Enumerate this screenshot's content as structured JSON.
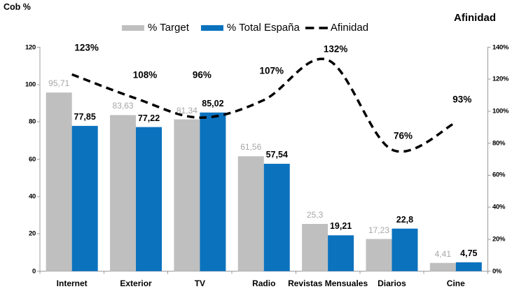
{
  "titles": {
    "left_axis_title": "Cob %",
    "right_axis_title": "Afinidad"
  },
  "legend": [
    {
      "label": "% Target",
      "marker": "gray-bar-swatch"
    },
    {
      "label": "% Total España",
      "marker": "blue-bar-swatch"
    },
    {
      "label": "Afinidad",
      "marker": "black-dashed-line-swatch"
    }
  ],
  "colors": {
    "target_bar": "#BFBFBF",
    "espana_bar": "#0B72BE",
    "line": "#000000",
    "target_label": "#A6A6A6",
    "espana_label": "#000000",
    "axis": "#9C9C9C"
  },
  "chart_data": {
    "type": "combo-bar-line",
    "title": "",
    "categories": [
      "Internet",
      "Exterior",
      "TV",
      "Radio",
      "Revistas Mensuales",
      "Diarios",
      "Cine"
    ],
    "series": [
      {
        "name": "% Target",
        "type": "bar",
        "axis": "left",
        "values": [
          95.71,
          83.63,
          81.34,
          61.56,
          25.3,
          17.23,
          4.41
        ],
        "labels": [
          "95,71",
          "83,63",
          "81,34",
          "61,56",
          "25,3",
          "17,23",
          "4,41"
        ]
      },
      {
        "name": "% Total España",
        "type": "bar",
        "axis": "left",
        "values": [
          77.85,
          77.22,
          85.02,
          57.54,
          19.21,
          22.8,
          4.75
        ],
        "labels": [
          "77,85",
          "77,22",
          "85,02",
          "57,54",
          "19,21",
          "22,8",
          "4,75"
        ]
      },
      {
        "name": "Afinidad",
        "type": "line",
        "axis": "right",
        "style": "smooth-dashed",
        "values": [
          123,
          108,
          96,
          107,
          132,
          76,
          93
        ],
        "labels": [
          "123%",
          "108%",
          "96%",
          "107%",
          "132%",
          "76%",
          "93%"
        ]
      }
    ],
    "left_axis": {
      "title": "Cob %",
      "min": 0,
      "max": 120,
      "step": 20,
      "tick_labels": [
        "0",
        "20",
        "40",
        "60",
        "80",
        "100",
        "120"
      ]
    },
    "right_axis": {
      "title": "Afinidad",
      "min": 0,
      "max": 140,
      "step": 20,
      "tick_labels": [
        "0%",
        "20%",
        "40%",
        "60%",
        "80%",
        "100%",
        "120%",
        "140%"
      ]
    },
    "grid": false,
    "legend_position": "top"
  }
}
